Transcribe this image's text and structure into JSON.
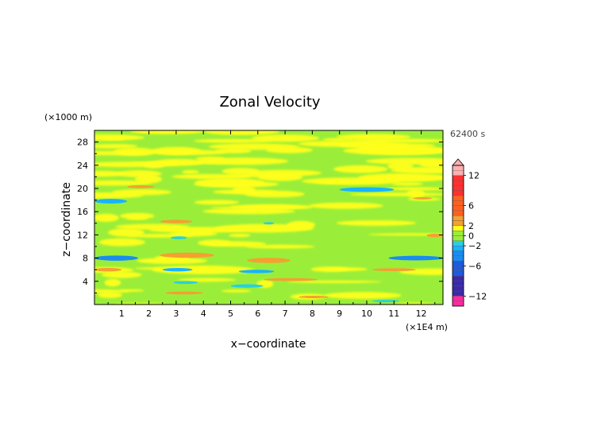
{
  "chart_data": {
    "type": "heatmap",
    "title": "Zonal Velocity",
    "xlabel": "x−coordinate",
    "ylabel": "z−coordinate",
    "x_unit": "(×1E4 m)",
    "y_unit": "(×1000 m)",
    "time_label": "62400 s",
    "xlim": [
      0,
      12.8
    ],
    "ylim": [
      0,
      30
    ],
    "x_ticks": [
      "1",
      "2",
      "3",
      "4",
      "5",
      "6",
      "7",
      "8",
      "9",
      "10",
      "11",
      "12"
    ],
    "y_ticks": [
      "4",
      "8",
      "12",
      "16",
      "20",
      "24",
      "28"
    ],
    "colorbar_ticks": [
      "12",
      "6",
      "2",
      "0",
      "−2",
      "−6",
      "−12"
    ],
    "colorbar_levels": [
      -14,
      -13,
      -12,
      -11,
      -10,
      -9,
      -8,
      -7,
      -6,
      -5,
      -4,
      -3,
      -2,
      -1,
      0,
      1,
      2,
      3,
      4,
      5,
      6,
      7,
      8,
      9,
      10,
      11,
      12,
      13,
      14
    ],
    "colors": {
      "neg_far": "#ff2aa0",
      "neg_mid": "#3a2aa8",
      "neg_near": "#19b3ff",
      "cyan": "#28d0e0",
      "green": "#9aee3a",
      "yellow": "#ffff1a",
      "orange": "#f5a030",
      "red": "#ff3030",
      "pink_top": "#ffb0b0"
    },
    "bands": [
      {
        "z": 8.0,
        "x0": 0.0,
        "x1": 1.6,
        "value": -3,
        "thickness": 0.9
      },
      {
        "z": 8.0,
        "x0": 10.8,
        "x1": 12.8,
        "value": -3,
        "thickness": 0.8
      },
      {
        "z": 17.8,
        "x0": 0.0,
        "x1": 1.2,
        "value": -2,
        "thickness": 0.8
      },
      {
        "z": 19.8,
        "x0": 9.0,
        "x1": 11.0,
        "value": -2,
        "thickness": 0.8
      },
      {
        "z": 6.0,
        "x0": 2.5,
        "x1": 3.6,
        "value": -2,
        "thickness": 0.6
      },
      {
        "z": 5.7,
        "x0": 5.3,
        "x1": 6.6,
        "value": -2,
        "thickness": 0.6
      },
      {
        "z": 3.8,
        "x0": 2.9,
        "x1": 3.8,
        "value": -1.5,
        "thickness": 0.5
      },
      {
        "z": 3.2,
        "x0": 5.0,
        "x1": 6.2,
        "value": -1.5,
        "thickness": 0.6
      },
      {
        "z": 11.5,
        "x0": 2.8,
        "x1": 3.4,
        "value": -1.5,
        "thickness": 0.5
      },
      {
        "z": 14.0,
        "x0": 6.2,
        "x1": 6.6,
        "value": -1.5,
        "thickness": 0.4
      },
      {
        "z": 0.6,
        "x0": 10.2,
        "x1": 11.2,
        "value": -1.5,
        "thickness": 0.4
      },
      {
        "z": 8.5,
        "x0": 2.4,
        "x1": 4.4,
        "value": 2.2,
        "thickness": 0.9
      },
      {
        "z": 7.6,
        "x0": 5.6,
        "x1": 7.2,
        "value": 2.2,
        "thickness": 0.9
      },
      {
        "z": 14.3,
        "x0": 2.4,
        "x1": 3.6,
        "value": 2.2,
        "thickness": 0.6
      },
      {
        "z": 6.0,
        "x0": 0.0,
        "x1": 1.0,
        "value": 2.2,
        "thickness": 0.6
      },
      {
        "z": 4.3,
        "x0": 6.2,
        "x1": 8.2,
        "value": 2.0,
        "thickness": 0.5
      },
      {
        "z": 6.0,
        "x0": 10.2,
        "x1": 11.8,
        "value": 2.0,
        "thickness": 0.5
      },
      {
        "z": 20.3,
        "x0": 1.2,
        "x1": 2.2,
        "value": 2.0,
        "thickness": 0.5
      },
      {
        "z": 2.0,
        "x0": 2.6,
        "x1": 4.0,
        "value": 2.0,
        "thickness": 0.5
      },
      {
        "z": 1.3,
        "x0": 7.5,
        "x1": 8.6,
        "value": 2.0,
        "thickness": 0.4
      },
      {
        "z": 11.9,
        "x0": 12.2,
        "x1": 12.8,
        "value": 2.0,
        "thickness": 0.6
      },
      {
        "z": 18.3,
        "x0": 11.7,
        "x1": 12.4,
        "value": 2.0,
        "thickness": 0.4
      }
    ]
  }
}
